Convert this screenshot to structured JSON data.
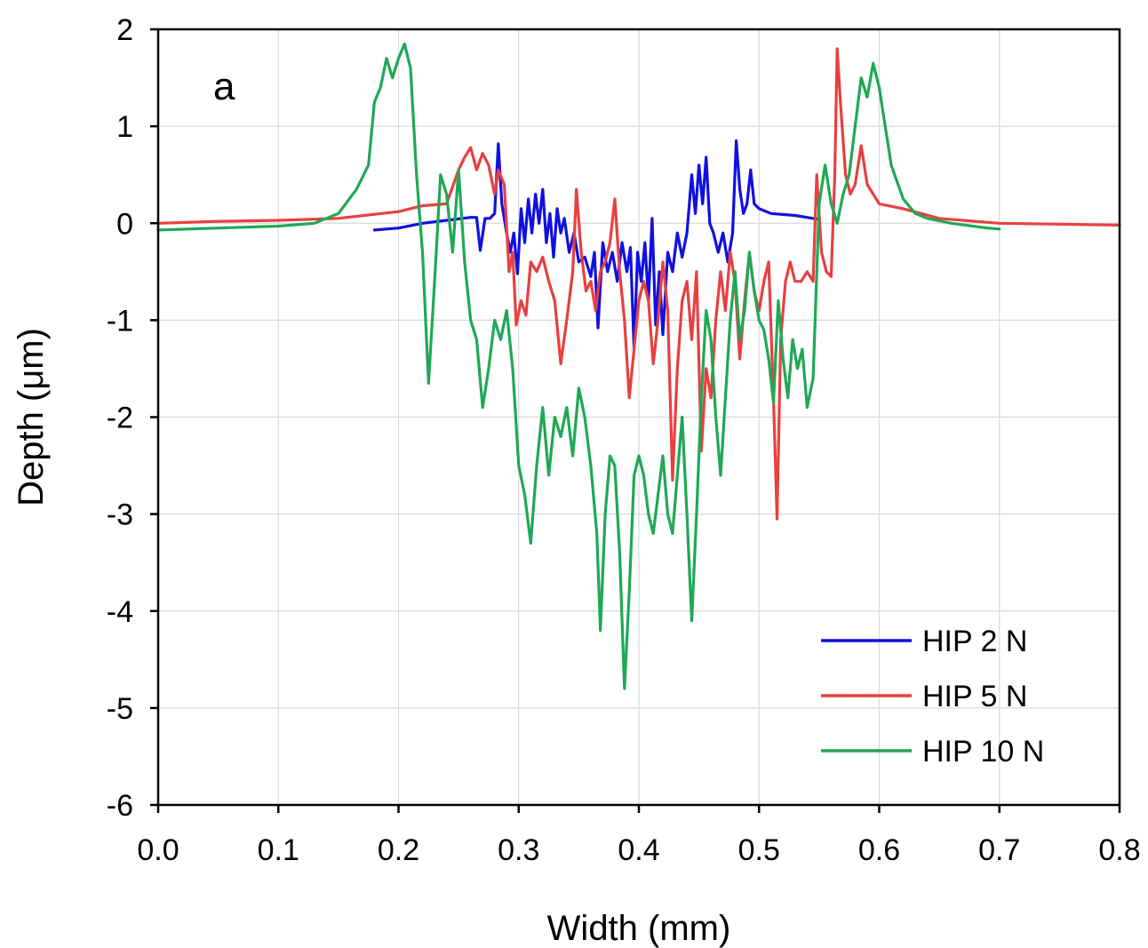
{
  "chart_data": {
    "type": "line",
    "title": "",
    "panel_label": "a",
    "xlabel": "Width (mm)",
    "ylabel": "Depth (μm)",
    "xlim": [
      0.0,
      0.8
    ],
    "ylim": [
      -6,
      2
    ],
    "xticks": [
      0.0,
      0.1,
      0.2,
      0.3,
      0.4,
      0.5,
      0.6,
      0.7,
      0.8
    ],
    "yticks": [
      2,
      1,
      0,
      -1,
      -2,
      -3,
      -4,
      -5,
      -6
    ],
    "xtick_labels": [
      "0.0",
      "0.1",
      "0.2",
      "0.3",
      "0.4",
      "0.5",
      "0.6",
      "0.7",
      "0.8"
    ],
    "ytick_labels": [
      "2",
      "1",
      "0",
      "-1",
      "-2",
      "-3",
      "-4",
      "-5",
      "-6"
    ],
    "grid": true,
    "legend_position": "bottom-right",
    "series": [
      {
        "name": "HIP 2 N",
        "color": "#1010e0",
        "points": [
          [
            0.18,
            -0.07
          ],
          [
            0.2,
            -0.05
          ],
          [
            0.22,
            0.0
          ],
          [
            0.24,
            0.03
          ],
          [
            0.26,
            0.06
          ],
          [
            0.265,
            0.06
          ],
          [
            0.268,
            -0.28
          ],
          [
            0.272,
            0.05
          ],
          [
            0.276,
            0.05
          ],
          [
            0.28,
            0.1
          ],
          [
            0.283,
            0.82
          ],
          [
            0.286,
            0.2
          ],
          [
            0.29,
            -0.1
          ],
          [
            0.293,
            -0.3
          ],
          [
            0.296,
            -0.1
          ],
          [
            0.299,
            -0.52
          ],
          [
            0.302,
            0.15
          ],
          [
            0.305,
            -0.2
          ],
          [
            0.308,
            0.25
          ],
          [
            0.311,
            -0.1
          ],
          [
            0.314,
            0.3
          ],
          [
            0.317,
            0.0
          ],
          [
            0.32,
            0.35
          ],
          [
            0.323,
            -0.2
          ],
          [
            0.326,
            0.1
          ],
          [
            0.329,
            -0.35
          ],
          [
            0.332,
            0.15
          ],
          [
            0.335,
            -0.1
          ],
          [
            0.338,
            0.05
          ],
          [
            0.342,
            -0.3
          ],
          [
            0.346,
            -0.1
          ],
          [
            0.35,
            -0.4
          ],
          [
            0.355,
            -0.35
          ],
          [
            0.36,
            -0.55
          ],
          [
            0.363,
            -0.3
          ],
          [
            0.366,
            -1.08
          ],
          [
            0.37,
            -0.2
          ],
          [
            0.374,
            -0.5
          ],
          [
            0.378,
            -0.3
          ],
          [
            0.382,
            -0.6
          ],
          [
            0.386,
            -0.2
          ],
          [
            0.39,
            -0.5
          ],
          [
            0.393,
            -0.25
          ],
          [
            0.396,
            -1.3
          ],
          [
            0.399,
            -0.3
          ],
          [
            0.402,
            -0.6
          ],
          [
            0.405,
            -0.2
          ],
          [
            0.408,
            -0.8
          ],
          [
            0.411,
            0.05
          ],
          [
            0.414,
            -1.05
          ],
          [
            0.417,
            -0.5
          ],
          [
            0.42,
            -1.15
          ],
          [
            0.424,
            -0.3
          ],
          [
            0.428,
            -0.5
          ],
          [
            0.432,
            -0.1
          ],
          [
            0.436,
            -0.35
          ],
          [
            0.44,
            -0.1
          ],
          [
            0.444,
            0.5
          ],
          [
            0.447,
            0.1
          ],
          [
            0.45,
            0.6
          ],
          [
            0.453,
            0.2
          ],
          [
            0.456,
            0.68
          ],
          [
            0.459,
            0.0
          ],
          [
            0.462,
            -0.1
          ],
          [
            0.466,
            -0.3
          ],
          [
            0.47,
            -0.1
          ],
          [
            0.474,
            -0.4
          ],
          [
            0.478,
            -0.1
          ],
          [
            0.481,
            0.85
          ],
          [
            0.484,
            0.35
          ],
          [
            0.487,
            0.1
          ],
          [
            0.49,
            0.2
          ],
          [
            0.493,
            0.55
          ],
          [
            0.496,
            0.2
          ],
          [
            0.5,
            0.15
          ],
          [
            0.51,
            0.1
          ],
          [
            0.53,
            0.08
          ],
          [
            0.55,
            0.04
          ]
        ]
      },
      {
        "name": "HIP 5 N",
        "color": "#e84040",
        "points": [
          [
            0.0,
            0.0
          ],
          [
            0.05,
            0.02
          ],
          [
            0.1,
            0.03
          ],
          [
            0.15,
            0.05
          ],
          [
            0.2,
            0.12
          ],
          [
            0.22,
            0.18
          ],
          [
            0.24,
            0.2
          ],
          [
            0.25,
            0.55
          ],
          [
            0.255,
            0.68
          ],
          [
            0.26,
            0.78
          ],
          [
            0.265,
            0.55
          ],
          [
            0.27,
            0.72
          ],
          [
            0.275,
            0.6
          ],
          [
            0.28,
            0.3
          ],
          [
            0.283,
            0.55
          ],
          [
            0.288,
            0.4
          ],
          [
            0.292,
            -0.5
          ],
          [
            0.295,
            -0.3
          ],
          [
            0.298,
            -1.05
          ],
          [
            0.302,
            -0.8
          ],
          [
            0.306,
            -0.95
          ],
          [
            0.31,
            -0.4
          ],
          [
            0.315,
            -0.5
          ],
          [
            0.32,
            -0.35
          ],
          [
            0.325,
            -0.6
          ],
          [
            0.33,
            -0.8
          ],
          [
            0.335,
            -1.45
          ],
          [
            0.34,
            -1.0
          ],
          [
            0.345,
            -0.5
          ],
          [
            0.348,
            0.35
          ],
          [
            0.352,
            -0.3
          ],
          [
            0.356,
            -0.7
          ],
          [
            0.36,
            -0.6
          ],
          [
            0.364,
            -0.9
          ],
          [
            0.368,
            -0.5
          ],
          [
            0.372,
            -0.4
          ],
          [
            0.376,
            -0.2
          ],
          [
            0.38,
            0.25
          ],
          [
            0.384,
            -0.5
          ],
          [
            0.388,
            -1.0
          ],
          [
            0.392,
            -1.8
          ],
          [
            0.396,
            -1.3
          ],
          [
            0.4,
            -0.8
          ],
          [
            0.404,
            -0.6
          ],
          [
            0.408,
            -0.8
          ],
          [
            0.412,
            -1.45
          ],
          [
            0.416,
            -1.0
          ],
          [
            0.42,
            -0.4
          ],
          [
            0.424,
            -0.9
          ],
          [
            0.428,
            -2.65
          ],
          [
            0.432,
            -1.5
          ],
          [
            0.436,
            -0.8
          ],
          [
            0.44,
            -0.6
          ],
          [
            0.444,
            -1.2
          ],
          [
            0.448,
            -0.5
          ],
          [
            0.452,
            -2.35
          ],
          [
            0.456,
            -1.5
          ],
          [
            0.46,
            -1.8
          ],
          [
            0.464,
            -1.0
          ],
          [
            0.468,
            -0.5
          ],
          [
            0.472,
            -0.9
          ],
          [
            0.476,
            -0.3
          ],
          [
            0.48,
            -0.6
          ],
          [
            0.484,
            -1.4
          ],
          [
            0.488,
            -0.8
          ],
          [
            0.492,
            -0.3
          ],
          [
            0.496,
            -0.7
          ],
          [
            0.5,
            -0.9
          ],
          [
            0.504,
            -0.6
          ],
          [
            0.508,
            -0.4
          ],
          [
            0.512,
            -1.8
          ],
          [
            0.515,
            -3.05
          ],
          [
            0.518,
            -1.2
          ],
          [
            0.522,
            -0.6
          ],
          [
            0.526,
            -0.4
          ],
          [
            0.53,
            -0.6
          ],
          [
            0.535,
            -0.6
          ],
          [
            0.54,
            -0.5
          ],
          [
            0.545,
            -0.6
          ],
          [
            0.548,
            0.5
          ],
          [
            0.552,
            -0.3
          ],
          [
            0.556,
            -0.5
          ],
          [
            0.56,
            -0.55
          ],
          [
            0.563,
            0.5
          ],
          [
            0.565,
            1.8
          ],
          [
            0.568,
            1.2
          ],
          [
            0.572,
            0.5
          ],
          [
            0.576,
            0.3
          ],
          [
            0.58,
            0.4
          ],
          [
            0.585,
            0.8
          ],
          [
            0.59,
            0.4
          ],
          [
            0.6,
            0.2
          ],
          [
            0.62,
            0.15
          ],
          [
            0.65,
            0.05
          ],
          [
            0.7,
            0.0
          ],
          [
            0.75,
            -0.01
          ],
          [
            0.8,
            -0.02
          ]
        ]
      },
      {
        "name": "HIP 10 N",
        "color": "#1fa855",
        "points": [
          [
            0.0,
            -0.07
          ],
          [
            0.05,
            -0.05
          ],
          [
            0.1,
            -0.03
          ],
          [
            0.13,
            0.0
          ],
          [
            0.15,
            0.1
          ],
          [
            0.165,
            0.35
          ],
          [
            0.175,
            0.6
          ],
          [
            0.18,
            1.25
          ],
          [
            0.185,
            1.4
          ],
          [
            0.19,
            1.7
          ],
          [
            0.195,
            1.5
          ],
          [
            0.2,
            1.7
          ],
          [
            0.205,
            1.85
          ],
          [
            0.21,
            1.6
          ],
          [
            0.215,
            0.5
          ],
          [
            0.22,
            -0.3
          ],
          [
            0.225,
            -1.65
          ],
          [
            0.23,
            -0.6
          ],
          [
            0.235,
            0.5
          ],
          [
            0.24,
            0.3
          ],
          [
            0.245,
            -0.3
          ],
          [
            0.25,
            0.55
          ],
          [
            0.255,
            -0.4
          ],
          [
            0.26,
            -1.0
          ],
          [
            0.265,
            -1.2
          ],
          [
            0.27,
            -1.9
          ],
          [
            0.275,
            -1.5
          ],
          [
            0.28,
            -1.0
          ],
          [
            0.285,
            -1.2
          ],
          [
            0.29,
            -0.9
          ],
          [
            0.295,
            -1.5
          ],
          [
            0.3,
            -2.5
          ],
          [
            0.305,
            -2.8
          ],
          [
            0.31,
            -3.3
          ],
          [
            0.315,
            -2.5
          ],
          [
            0.32,
            -1.9
          ],
          [
            0.325,
            -2.6
          ],
          [
            0.33,
            -2.0
          ],
          [
            0.335,
            -2.2
          ],
          [
            0.34,
            -1.9
          ],
          [
            0.345,
            -2.4
          ],
          [
            0.35,
            -1.7
          ],
          [
            0.355,
            -2.0
          ],
          [
            0.36,
            -2.5
          ],
          [
            0.365,
            -3.2
          ],
          [
            0.368,
            -4.2
          ],
          [
            0.372,
            -3.0
          ],
          [
            0.376,
            -2.4
          ],
          [
            0.38,
            -2.5
          ],
          [
            0.384,
            -3.4
          ],
          [
            0.388,
            -4.8
          ],
          [
            0.392,
            -3.8
          ],
          [
            0.396,
            -2.6
          ],
          [
            0.4,
            -2.4
          ],
          [
            0.404,
            -2.6
          ],
          [
            0.408,
            -3.0
          ],
          [
            0.412,
            -3.2
          ],
          [
            0.416,
            -2.8
          ],
          [
            0.42,
            -2.4
          ],
          [
            0.424,
            -3.0
          ],
          [
            0.428,
            -3.2
          ],
          [
            0.432,
            -2.6
          ],
          [
            0.436,
            -2.0
          ],
          [
            0.44,
            -3.0
          ],
          [
            0.444,
            -4.1
          ],
          [
            0.448,
            -3.0
          ],
          [
            0.452,
            -1.8
          ],
          [
            0.456,
            -0.9
          ],
          [
            0.46,
            -1.2
          ],
          [
            0.464,
            -2.0
          ],
          [
            0.468,
            -2.6
          ],
          [
            0.472,
            -1.8
          ],
          [
            0.476,
            -1.0
          ],
          [
            0.48,
            -0.5
          ],
          [
            0.484,
            -1.2
          ],
          [
            0.488,
            -0.9
          ],
          [
            0.492,
            -0.3
          ],
          [
            0.496,
            -0.7
          ],
          [
            0.5,
            -1.0
          ],
          [
            0.504,
            -1.1
          ],
          [
            0.508,
            -1.4
          ],
          [
            0.512,
            -1.85
          ],
          [
            0.516,
            -0.8
          ],
          [
            0.52,
            -1.4
          ],
          [
            0.524,
            -1.8
          ],
          [
            0.528,
            -1.2
          ],
          [
            0.532,
            -1.5
          ],
          [
            0.536,
            -1.3
          ],
          [
            0.54,
            -1.9
          ],
          [
            0.545,
            -1.6
          ],
          [
            0.55,
            0.2
          ],
          [
            0.555,
            0.6
          ],
          [
            0.56,
            0.2
          ],
          [
            0.565,
            0.0
          ],
          [
            0.57,
            0.3
          ],
          [
            0.575,
            0.5
          ],
          [
            0.58,
            1.0
          ],
          [
            0.585,
            1.5
          ],
          [
            0.59,
            1.3
          ],
          [
            0.595,
            1.65
          ],
          [
            0.6,
            1.4
          ],
          [
            0.61,
            0.6
          ],
          [
            0.62,
            0.25
          ],
          [
            0.63,
            0.1
          ],
          [
            0.64,
            0.05
          ],
          [
            0.66,
            0.0
          ],
          [
            0.69,
            -0.05
          ],
          [
            0.7,
            -0.06
          ]
        ]
      }
    ]
  }
}
